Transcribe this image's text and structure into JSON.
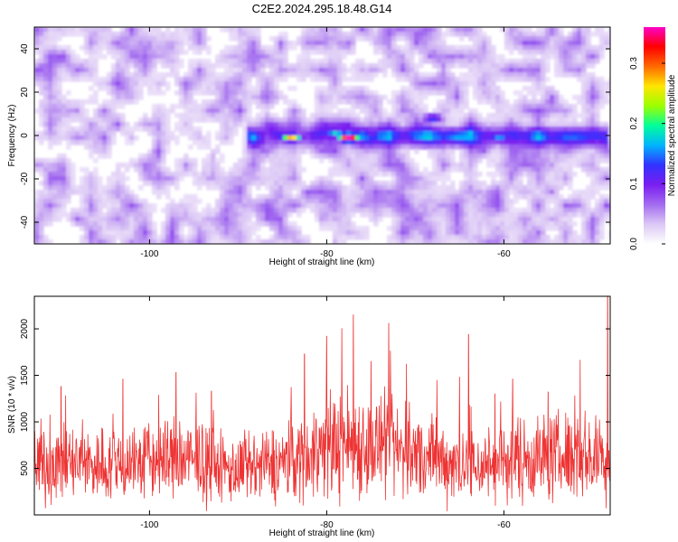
{
  "title": "C2E2.2024.295.18.48.G14",
  "chart_data": [
    {
      "type": "heatmap",
      "xlabel": "Height of straight line (km)",
      "ylabel": "Frequency (Hz)",
      "x_ticks": [
        -100,
        -80,
        -60
      ],
      "y_ticks": [
        40,
        20,
        0,
        -20,
        -40
      ],
      "xlim": [
        -113,
        -48
      ],
      "ylim": [
        -50,
        50
      ],
      "colorbar": {
        "label": "Normalized spectral amplitude",
        "ticks": [
          0.0,
          0.1,
          0.2,
          0.3
        ],
        "range": [
          0.0,
          0.36
        ],
        "colors": [
          "#ffffff",
          "#dcc8f5",
          "#a36cf0",
          "#7a1ef0",
          "#3232ff",
          "#00b4ff",
          "#00ff9a",
          "#9cff00",
          "#ffe600",
          "#ff6a00",
          "#ff0000",
          "#ff00c8"
        ]
      },
      "features": [
        {
          "kind": "band",
          "x_start": -89,
          "x_end": -48,
          "freq_center": 0,
          "half_width": 6
        }
      ],
      "hotspots": [
        {
          "x": -77.5,
          "y": -1,
          "value": 0.36
        },
        {
          "x": -84,
          "y": -1,
          "value": 0.28
        },
        {
          "x": -79,
          "y": 1,
          "value": 0.18
        },
        {
          "x": -68,
          "y": 8,
          "value": 0.14
        },
        {
          "x": -60.5,
          "y": -1,
          "value": 0.16
        }
      ]
    },
    {
      "type": "line",
      "xlabel": "Height of straight line (km)",
      "ylabel": "SNR (10 * v/v)",
      "x_ticks": [
        -100,
        -80,
        -60
      ],
      "y_ticks": [
        500,
        1000,
        1500,
        2000
      ],
      "xlim": [
        -113,
        -48
      ],
      "ylim": [
        0,
        2350
      ],
      "color": "#ee3333",
      "envelope": [
        {
          "x": -113,
          "mean": 560
        },
        {
          "x": -105,
          "mean": 540
        },
        {
          "x": -97,
          "mean": 610
        },
        {
          "x": -90,
          "mean": 470
        },
        {
          "x": -85,
          "mean": 560
        },
        {
          "x": -78,
          "mean": 790
        },
        {
          "x": -73,
          "mean": 720
        },
        {
          "x": -68,
          "mean": 600
        },
        {
          "x": -63,
          "mean": 520
        },
        {
          "x": -58,
          "mean": 610
        },
        {
          "x": -52,
          "mean": 640
        },
        {
          "x": -48,
          "mean": 600
        }
      ],
      "peaks": [
        {
          "x": -110,
          "y": 1380
        },
        {
          "x": -103,
          "y": 1460
        },
        {
          "x": -97,
          "y": 1530
        },
        {
          "x": -93,
          "y": 1330
        },
        {
          "x": -82.5,
          "y": 1730
        },
        {
          "x": -80,
          "y": 1920
        },
        {
          "x": -77,
          "y": 2150
        },
        {
          "x": -75,
          "y": 1650
        },
        {
          "x": -73,
          "y": 2060
        },
        {
          "x": -71,
          "y": 1620
        },
        {
          "x": -65,
          "y": 1480
        },
        {
          "x": -64,
          "y": 1940
        },
        {
          "x": -61,
          "y": 1300
        },
        {
          "x": -59,
          "y": 1460
        },
        {
          "x": -55,
          "y": 1320
        },
        {
          "x": -52,
          "y": 1280
        },
        {
          "x": -48.3,
          "y": 2350
        }
      ]
    }
  ]
}
